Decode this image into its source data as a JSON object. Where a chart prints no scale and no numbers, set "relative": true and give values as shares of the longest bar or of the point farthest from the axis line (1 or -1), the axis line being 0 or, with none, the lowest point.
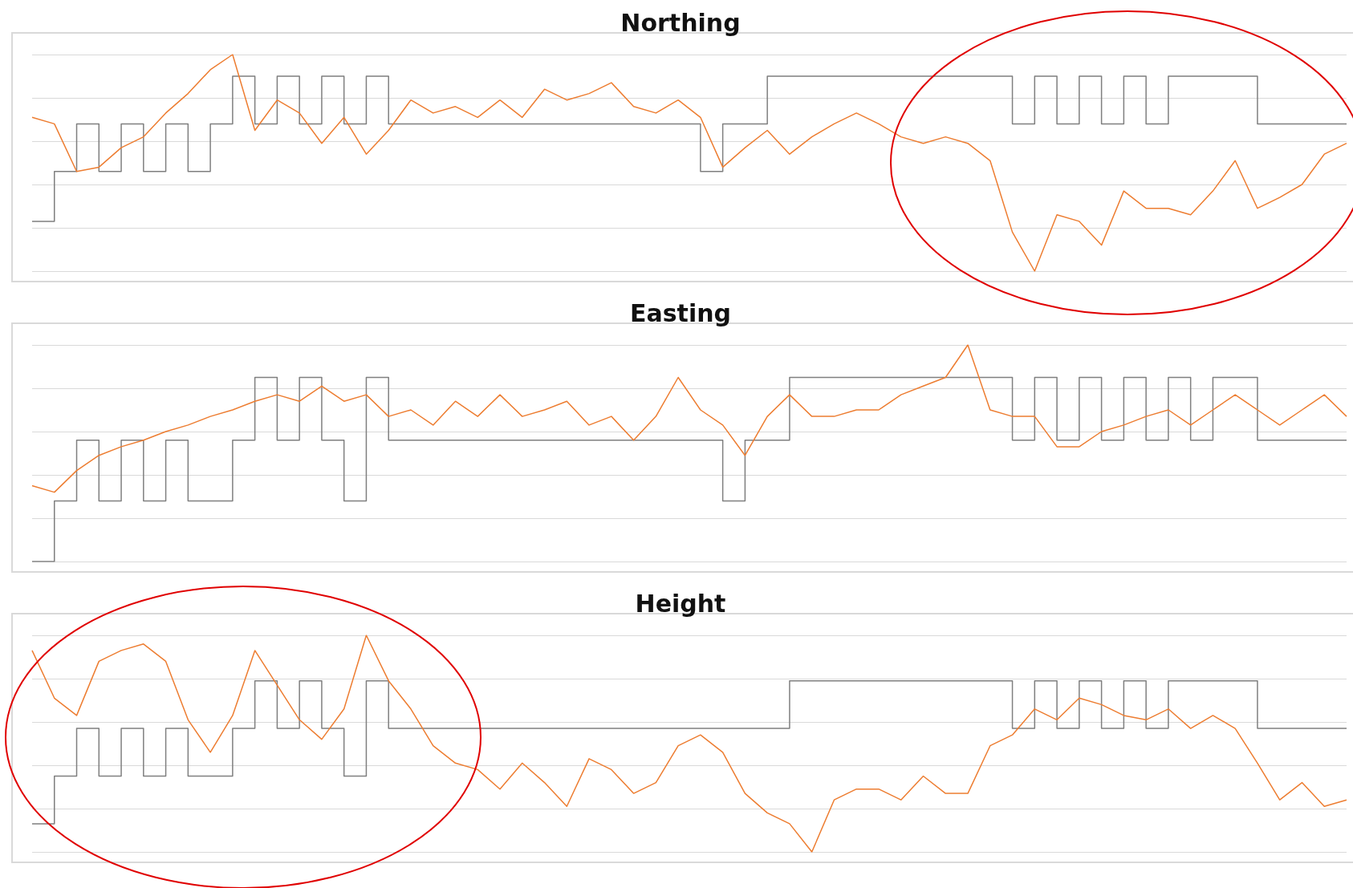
{
  "chart_data": [
    {
      "type": "line",
      "title": "Northing",
      "relative": true,
      "grid": "y",
      "categories": [
        null,
        null,
        null,
        null,
        null,
        null,
        null,
        null,
        null,
        null,
        null,
        null,
        null,
        null,
        null,
        null,
        null,
        null,
        null,
        null,
        null,
        null,
        null,
        null,
        null,
        null,
        null,
        null,
        null,
        null,
        null,
        null,
        null,
        null,
        null,
        null,
        null,
        null,
        null,
        null,
        null,
        null,
        null,
        null,
        null,
        null,
        null,
        null,
        null,
        null,
        null,
        null,
        null,
        null,
        null,
        null,
        null,
        null,
        null,
        null
      ],
      "series": [
        {
          "type": "step",
          "color": "#7f7f7f",
          "values": [
            0.23,
            0.46,
            0.68,
            0.46,
            0.68,
            0.46,
            0.68,
            0.46,
            0.68,
            0.9,
            0.68,
            0.9,
            0.68,
            0.9,
            0.68,
            0.9,
            0.68,
            0.68,
            0.68,
            0.68,
            0.68,
            0.68,
            0.68,
            0.68,
            0.68,
            0.68,
            0.68,
            0.68,
            0.68,
            0.68,
            0.46,
            0.68,
            0.68,
            0.9,
            0.9,
            0.9,
            0.9,
            0.9,
            0.9,
            0.9,
            0.9,
            0.9,
            0.9,
            0.9,
            0.68,
            0.9,
            0.68,
            0.9,
            0.68,
            0.9,
            0.68,
            0.9,
            0.9,
            0.9,
            0.9,
            0.68,
            0.68,
            0.68,
            0.68,
            0.68
          ]
        },
        {
          "type": "line",
          "color": "#ed7d31",
          "values": [
            0.71,
            0.68,
            0.46,
            0.48,
            0.57,
            0.62,
            0.73,
            0.82,
            0.93,
            1,
            0.65,
            0.79,
            0.73,
            0.59,
            0.71,
            0.54,
            0.65,
            0.79,
            0.73,
            0.76,
            0.71,
            0.79,
            0.71,
            0.84,
            0.79,
            0.82,
            0.87,
            0.76,
            0.73,
            0.79,
            0.71,
            0.48,
            0.57,
            0.65,
            0.54,
            0.62,
            0.68,
            0.73,
            0.68,
            0.62,
            0.59,
            0.62,
            0.59,
            0.51,
            0.18,
            0,
            0.26,
            0.23,
            0.12,
            0.37,
            0.29,
            0.29,
            0.26,
            0.37,
            0.51,
            0.29,
            0.34,
            0.4,
            0.54,
            0.59
          ]
        }
      ]
    },
    {
      "type": "line",
      "title": "Easting",
      "relative": true,
      "grid": "y",
      "categories": [
        null,
        null,
        null,
        null,
        null,
        null,
        null,
        null,
        null,
        null,
        null,
        null,
        null,
        null,
        null,
        null,
        null,
        null,
        null,
        null,
        null,
        null,
        null,
        null,
        null,
        null,
        null,
        null,
        null,
        null,
        null,
        null,
        null,
        null,
        null,
        null,
        null,
        null,
        null,
        null,
        null,
        null,
        null,
        null,
        null,
        null,
        null,
        null,
        null,
        null,
        null,
        null,
        null,
        null,
        null,
        null,
        null,
        null,
        null,
        null
      ],
      "series": [
        {
          "type": "step",
          "color": "#7f7f7f",
          "values": [
            0,
            0.28,
            0.56,
            0.28,
            0.56,
            0.28,
            0.56,
            0.28,
            0.28,
            0.56,
            0.85,
            0.56,
            0.85,
            0.56,
            0.28,
            0.85,
            0.56,
            0.56,
            0.56,
            0.56,
            0.56,
            0.56,
            0.56,
            0.56,
            0.56,
            0.56,
            0.56,
            0.56,
            0.56,
            0.56,
            0.56,
            0.28,
            0.56,
            0.56,
            0.85,
            0.85,
            0.85,
            0.85,
            0.85,
            0.85,
            0.85,
            0.85,
            0.85,
            0.85,
            0.56,
            0.85,
            0.56,
            0.85,
            0.56,
            0.85,
            0.56,
            0.85,
            0.56,
            0.85,
            0.85,
            0.56,
            0.56,
            0.56,
            0.56,
            0.56
          ]
        },
        {
          "type": "line",
          "color": "#ed7d31",
          "values": [
            0.35,
            0.32,
            0.42,
            0.49,
            0.53,
            0.56,
            0.6,
            0.63,
            0.67,
            0.7,
            0.74,
            0.77,
            0.74,
            0.81,
            0.74,
            0.77,
            0.67,
            0.7,
            0.63,
            0.74,
            0.67,
            0.77,
            0.67,
            0.7,
            0.74,
            0.63,
            0.67,
            0.56,
            0.67,
            0.85,
            0.7,
            0.63,
            0.49,
            0.67,
            0.77,
            0.67,
            0.67,
            0.7,
            0.7,
            0.77,
            0.81,
            0.85,
            1,
            0.7,
            0.67,
            0.67,
            0.53,
            0.53,
            0.6,
            0.63,
            0.67,
            0.7,
            0.63,
            0.7,
            0.77,
            0.7,
            0.63,
            0.7,
            0.77,
            0.67
          ]
        }
      ]
    },
    {
      "type": "line",
      "title": "Height",
      "relative": true,
      "grid": "y",
      "categories": [
        null,
        null,
        null,
        null,
        null,
        null,
        null,
        null,
        null,
        null,
        null,
        null,
        null,
        null,
        null,
        null,
        null,
        null,
        null,
        null,
        null,
        null,
        null,
        null,
        null,
        null,
        null,
        null,
        null,
        null,
        null,
        null,
        null,
        null,
        null,
        null,
        null,
        null,
        null,
        null,
        null,
        null,
        null,
        null,
        null,
        null,
        null,
        null,
        null,
        null,
        null,
        null,
        null,
        null,
        null,
        null,
        null,
        null,
        null,
        null
      ],
      "series": [
        {
          "type": "step",
          "color": "#7f7f7f",
          "values": [
            0.13,
            0.35,
            0.57,
            0.35,
            0.57,
            0.35,
            0.57,
            0.35,
            0.35,
            0.57,
            0.79,
            0.57,
            0.79,
            0.57,
            0.35,
            0.79,
            0.57,
            0.57,
            0.57,
            0.57,
            0.57,
            0.57,
            0.57,
            0.57,
            0.57,
            0.57,
            0.57,
            0.57,
            0.57,
            0.57,
            0.57,
            0.57,
            0.57,
            0.57,
            0.79,
            0.79,
            0.79,
            0.79,
            0.79,
            0.79,
            0.79,
            0.79,
            0.79,
            0.79,
            0.57,
            0.79,
            0.57,
            0.79,
            0.57,
            0.79,
            0.57,
            0.79,
            0.79,
            0.79,
            0.79,
            0.57,
            0.57,
            0.57,
            0.57,
            0.57
          ]
        },
        {
          "type": "line",
          "color": "#ed7d31",
          "values": [
            0.93,
            0.71,
            0.63,
            0.88,
            0.93,
            0.96,
            0.88,
            0.61,
            0.46,
            0.63,
            0.93,
            0.77,
            0.61,
            0.52,
            0.66,
            1,
            0.79,
            0.66,
            0.49,
            0.41,
            0.38,
            0.29,
            0.41,
            0.32,
            0.21,
            0.43,
            0.38,
            0.27,
            0.32,
            0.49,
            0.54,
            0.46,
            0.27,
            0.18,
            0.13,
            0,
            0.24,
            0.29,
            0.29,
            0.24,
            0.35,
            0.27,
            0.27,
            0.49,
            0.54,
            0.66,
            0.61,
            0.71,
            0.68,
            0.63,
            0.61,
            0.66,
            0.57,
            0.63,
            0.57,
            0.41,
            0.24,
            0.32,
            0.21,
            0.24
          ]
        }
      ]
    }
  ]
}
